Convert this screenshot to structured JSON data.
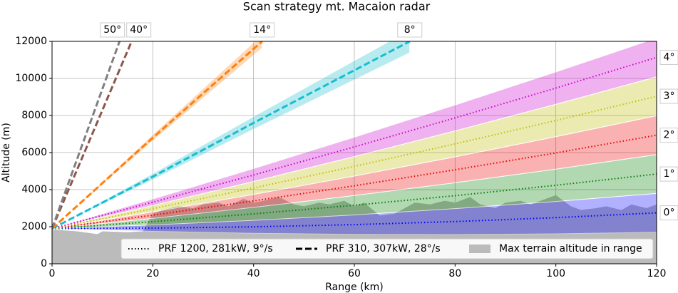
{
  "chart_data": {
    "type": "line",
    "title": "Scan strategy mt. Macaion radar",
    "xlabel": "Range (km)",
    "ylabel": "Altitude (m)",
    "xlim": [
      0,
      120
    ],
    "ylim": [
      0,
      12000
    ],
    "xticks": [
      0,
      20,
      40,
      60,
      80,
      100,
      120
    ],
    "yticks": [
      0,
      2000,
      4000,
      6000,
      8000,
      10000,
      12000
    ],
    "grid": true,
    "terrain": {
      "color": "#bbbbbb",
      "x": [
        0,
        5,
        9,
        10,
        15,
        18,
        20,
        22,
        25,
        28,
        30,
        33,
        35,
        38,
        40,
        42,
        45,
        48,
        50,
        53,
        55,
        58,
        60,
        62,
        65,
        68,
        70,
        72,
        75,
        78,
        80,
        83,
        85,
        88,
        90,
        93,
        95,
        98,
        100,
        103,
        105,
        108,
        110,
        113,
        115,
        118,
        120
      ],
      "values": [
        1850,
        1750,
        1600,
        1750,
        1700,
        1750,
        2700,
        2900,
        3100,
        3000,
        3200,
        3300,
        3100,
        3500,
        3300,
        3400,
        3600,
        3200,
        3100,
        3300,
        3200,
        3400,
        3100,
        3300,
        2600,
        2700,
        3000,
        3300,
        3200,
        3400,
        3300,
        3600,
        3200,
        3000,
        3300,
        3400,
        3200,
        3500,
        3700,
        3100,
        2900,
        3000,
        3100,
        2900,
        3200,
        3000,
        3200
      ]
    },
    "series": [
      {
        "name": "0°",
        "color": "#0000ff",
        "dash": "dotted",
        "x": [
          0,
          20,
          40,
          60,
          80,
          100,
          120
        ],
        "values": [
          1900,
          1924,
          1994,
          2112,
          2277,
          2489,
          2748
        ],
        "lower": [
          1900,
          1749,
          1645,
          1588,
          1579,
          1616,
          1701
        ],
        "upper": [
          1900,
          2099,
          2343,
          2636,
          2975,
          3362,
          3795
        ]
      },
      {
        "name": "1°",
        "color": "#008000",
        "dash": "dotted",
        "x": [
          0,
          20,
          40,
          60,
          80,
          100,
          120
        ],
        "values": [
          1900,
          2273,
          2692,
          3159,
          3673,
          4234,
          4842
        ],
        "lower": [
          1900,
          2098,
          2343,
          2635,
          2975,
          3361,
          3795
        ],
        "upper": [
          1900,
          2448,
          3041,
          3683,
          4371,
          5107,
          5889
        ]
      },
      {
        "name": "2°",
        "color": "#ee0000",
        "dash": "dotted",
        "x": [
          0,
          20,
          40,
          60,
          80,
          100,
          120
        ],
        "values": [
          1900,
          2622,
          3391,
          4207,
          5071,
          5981,
          6938
        ],
        "lower": [
          1900,
          2447,
          3042,
          3683,
          4373,
          5108,
          5891
        ],
        "upper": [
          1900,
          2797,
          3740,
          4731,
          5769,
          6854,
          7985
        ]
      },
      {
        "name": "3°",
        "color": "#bfbf00",
        "dash": "dotted",
        "x": [
          0,
          20,
          40,
          60,
          80,
          100,
          120
        ],
        "values": [
          1900,
          2972,
          4090,
          5256,
          6469,
          7729,
          9036
        ],
        "lower": [
          1900,
          2797,
          3741,
          4732,
          5771,
          6856,
          7989
        ],
        "upper": [
          1900,
          3147,
          4439,
          5780,
          7167,
          8602,
          10083
        ]
      },
      {
        "name": "4°",
        "color": "#cc00cc",
        "dash": "dotted",
        "x": [
          0,
          20,
          40,
          60,
          80,
          100,
          120
        ],
        "values": [
          1900,
          3322,
          4790,
          6306,
          7869,
          9479,
          11136
        ],
        "lower": [
          1900,
          3147,
          4441,
          5782,
          7171,
          8606,
          10089
        ],
        "upper": [
          1900,
          3497,
          5139,
          6830,
          8567,
          10352,
          12183
        ]
      },
      {
        "name": "8°",
        "color": "#17becf",
        "dash": "dashed",
        "x": [
          0,
          20,
          40,
          71
        ],
        "values": [
          1900,
          4700,
          7600,
          12000
        ],
        "lower": [
          1900,
          4525,
          7251,
          11380
        ],
        "upper": [
          1900,
          4875,
          7949,
          12620
        ]
      },
      {
        "name": "14°",
        "color": "#ff7f0e",
        "dash": "dashed",
        "x": [
          0,
          20,
          41.7
        ],
        "values": [
          1900,
          6800,
          12000
        ],
        "lower": [
          1900,
          6625,
          11636
        ],
        "upper": [
          1900,
          6975,
          12364
        ]
      },
      {
        "name": "40°",
        "color": "#8c564b",
        "dash": "dashed",
        "x": [
          0,
          15.8
        ],
        "values": [
          1900,
          12000
        ]
      },
      {
        "name": "50°",
        "color": "#7f7f7f",
        "dash": "dashed",
        "x": [
          0,
          13.4
        ],
        "values": [
          1900,
          12000
        ]
      }
    ],
    "legend": [
      {
        "label": "PRF 1200, 281kW, 9°/s",
        "style": "dotted"
      },
      {
        "label": "PRF 310, 307kW, 28°/s",
        "style": "dashed"
      },
      {
        "label": "Max terrain altitude in range",
        "style": "area"
      }
    ]
  }
}
